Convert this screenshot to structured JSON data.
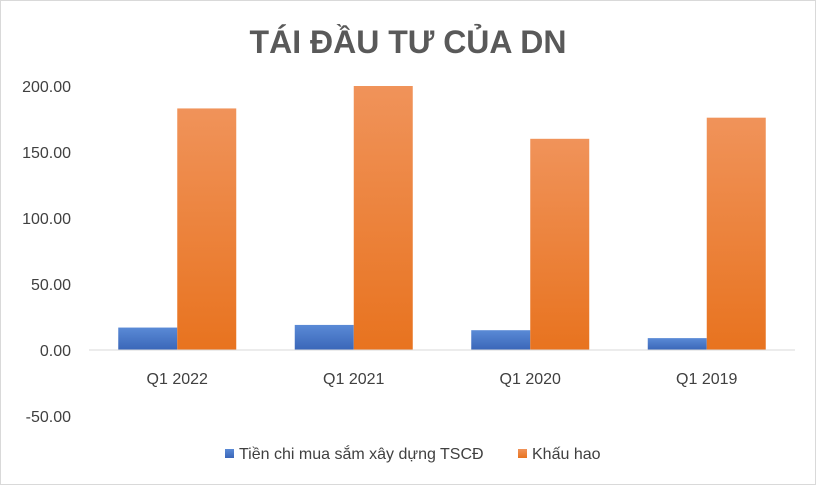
{
  "chart_data": {
    "type": "bar",
    "title": "TÁI ĐẦU TƯ CỦA DN",
    "xlabel": "",
    "ylabel": "",
    "categories": [
      "Q1 2022",
      "Q1 2021",
      "Q1 2020",
      "Q1 2019"
    ],
    "series": [
      {
        "name": "Tiền chi mua sắm xây dựng TSCĐ",
        "values": [
          17,
          19,
          15,
          9
        ],
        "color": "#4472c4"
      },
      {
        "name": "Khấu hao",
        "values": [
          183,
          200,
          160,
          176
        ],
        "color": "#ed7d31"
      }
    ],
    "ylim": [
      -50,
      200
    ],
    "yticks": [
      "200.00",
      "150.00",
      "100.00",
      "50.00",
      "0.00",
      "-50.00"
    ],
    "ytick_values": [
      200,
      150,
      100,
      50,
      0,
      -50
    ],
    "grid": false,
    "legend_position": "bottom"
  }
}
